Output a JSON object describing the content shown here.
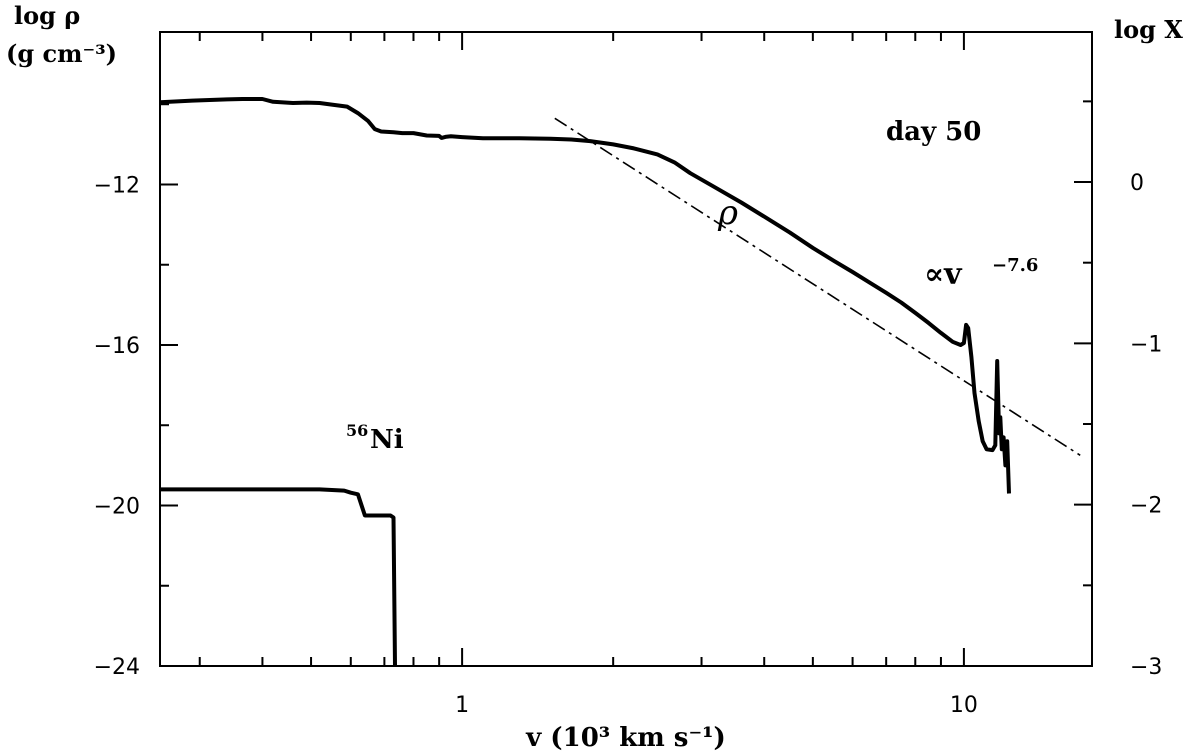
{
  "chart_data": {
    "type": "line",
    "x_scale": "log",
    "xlim": [
      0.25,
      18
    ],
    "ylim_left": [
      -24,
      -8.2
    ],
    "ylim_right": [
      -3,
      0.93
    ],
    "xlabel": "v (10³ km s⁻¹)",
    "ylabel_left_line1": "log ρ",
    "ylabel_left_line2": "(g cm⁻³)",
    "ylabel_right": "log X",
    "x_tick_labels": [
      {
        "v": 1,
        "t": "1"
      },
      {
        "v": 10,
        "t": "10"
      }
    ],
    "y_left_tick_labels": [
      {
        "v": -12,
        "t": "−12"
      },
      {
        "v": -16,
        "t": "−16"
      },
      {
        "v": -20,
        "t": "−20"
      },
      {
        "v": -24,
        "t": "−24"
      }
    ],
    "y_right_tick_labels": [
      {
        "v": 0,
        "t": "0"
      },
      {
        "v": -1,
        "t": "−1"
      },
      {
        "v": -2,
        "t": "−2"
      },
      {
        "v": -3,
        "t": "−3"
      }
    ],
    "annotations": {
      "day": "day 50",
      "rho": "ρ",
      "powerlaw": "∝v",
      "powerlaw_exp": "−7.6",
      "ni_sup": "56",
      "ni": "Ni"
    },
    "series": [
      {
        "id": "rho",
        "axis": "left",
        "style": "solid",
        "points": [
          [
            0.25,
            -9.95
          ],
          [
            0.29,
            -9.91
          ],
          [
            0.34,
            -9.88
          ],
          [
            0.365,
            -9.87
          ],
          [
            0.4,
            -9.87
          ],
          [
            0.42,
            -9.94
          ],
          [
            0.46,
            -9.97
          ],
          [
            0.49,
            -9.96
          ],
          [
            0.52,
            -9.97
          ],
          [
            0.55,
            -10.01
          ],
          [
            0.59,
            -10.06
          ],
          [
            0.62,
            -10.22
          ],
          [
            0.65,
            -10.42
          ],
          [
            0.67,
            -10.62
          ],
          [
            0.69,
            -10.68
          ],
          [
            0.73,
            -10.7
          ],
          [
            0.76,
            -10.72
          ],
          [
            0.8,
            -10.72
          ],
          [
            0.85,
            -10.78
          ],
          [
            0.9,
            -10.79
          ],
          [
            0.91,
            -10.84
          ],
          [
            0.93,
            -10.81
          ],
          [
            0.95,
            -10.8
          ],
          [
            1.0,
            -10.82
          ],
          [
            1.1,
            -10.85
          ],
          [
            1.3,
            -10.85
          ],
          [
            1.5,
            -10.86
          ],
          [
            1.65,
            -10.88
          ],
          [
            1.8,
            -10.92
          ],
          [
            2.0,
            -11.0
          ],
          [
            2.2,
            -11.1
          ],
          [
            2.45,
            -11.25
          ],
          [
            2.65,
            -11.45
          ],
          [
            2.85,
            -11.72
          ],
          [
            3.2,
            -12.08
          ],
          [
            3.6,
            -12.45
          ],
          [
            4.0,
            -12.8
          ],
          [
            4.5,
            -13.2
          ],
          [
            5.0,
            -13.58
          ],
          [
            5.5,
            -13.9
          ],
          [
            6.0,
            -14.18
          ],
          [
            6.5,
            -14.45
          ],
          [
            7.0,
            -14.7
          ],
          [
            7.5,
            -14.94
          ],
          [
            8.0,
            -15.2
          ],
          [
            8.5,
            -15.45
          ],
          [
            9.0,
            -15.7
          ],
          [
            9.5,
            -15.92
          ],
          [
            9.85,
            -16.0
          ],
          [
            10.0,
            -15.95
          ],
          [
            10.1,
            -15.5
          ],
          [
            10.2,
            -15.58
          ],
          [
            10.35,
            -16.3
          ],
          [
            10.5,
            -17.2
          ],
          [
            10.7,
            -17.9
          ],
          [
            10.9,
            -18.4
          ],
          [
            11.1,
            -18.6
          ],
          [
            11.4,
            -18.62
          ],
          [
            11.55,
            -18.5
          ],
          [
            11.65,
            -16.4
          ],
          [
            11.75,
            -18.2
          ],
          [
            11.82,
            -17.8
          ],
          [
            11.9,
            -18.6
          ],
          [
            12.0,
            -18.3
          ],
          [
            12.1,
            -19.0
          ],
          [
            12.2,
            -18.4
          ],
          [
            12.3,
            -19.7
          ]
        ]
      },
      {
        "id": "fit",
        "axis": "left",
        "style": "dashdot",
        "points": [
          [
            1.53,
            -10.35
          ],
          [
            17.05,
            -18.75
          ]
        ]
      },
      {
        "id": "ni56",
        "axis": "left",
        "style": "solid",
        "points": [
          [
            0.25,
            -19.6
          ],
          [
            0.52,
            -19.6
          ],
          [
            0.582,
            -19.63
          ],
          [
            0.6,
            -19.68
          ],
          [
            0.62,
            -19.72
          ],
          [
            0.64,
            -20.25
          ],
          [
            0.665,
            -20.25
          ],
          [
            0.7,
            -20.25
          ],
          [
            0.72,
            -20.25
          ],
          [
            0.73,
            -20.3
          ],
          [
            0.735,
            -24.0
          ]
        ]
      }
    ]
  }
}
